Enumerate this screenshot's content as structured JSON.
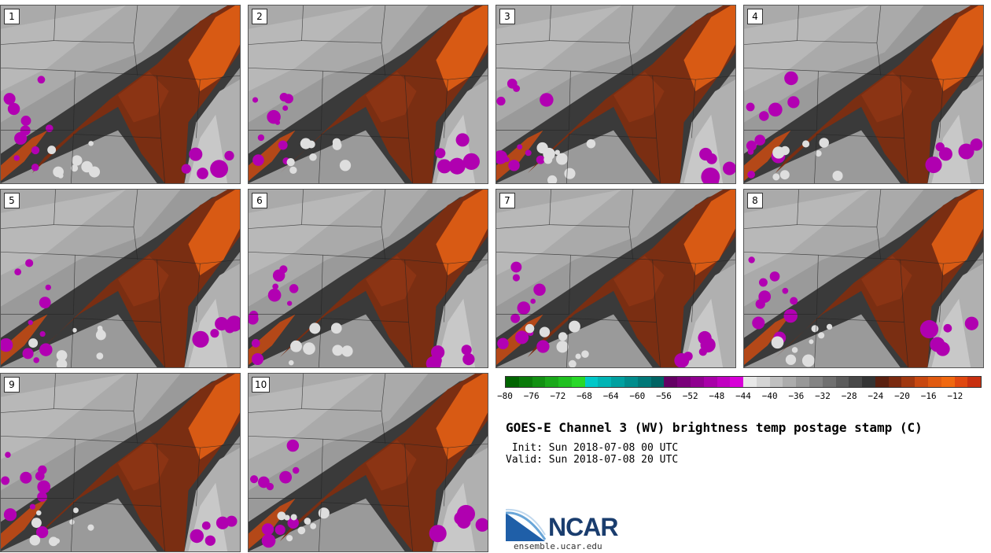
{
  "panels": [
    {
      "label": "1"
    },
    {
      "label": "2"
    },
    {
      "label": "3"
    },
    {
      "label": "4"
    },
    {
      "label": "5"
    },
    {
      "label": "6"
    },
    {
      "label": "7"
    },
    {
      "label": "8"
    },
    {
      "label": "9"
    },
    {
      "label": "10"
    }
  ],
  "colorbar": {
    "colors": [
      "#006400",
      "#0a7a0a",
      "#129012",
      "#1aa81a",
      "#20c020",
      "#28d828",
      "#00c8c8",
      "#00b4b4",
      "#00a0a0",
      "#008c8c",
      "#007878",
      "#006464",
      "#640064",
      "#7a007a",
      "#900090",
      "#a800a8",
      "#c000c0",
      "#d800d8",
      "#e8e8e8",
      "#d4d4d4",
      "#c0c0c0",
      "#acacac",
      "#989898",
      "#848484",
      "#707070",
      "#5c5c5c",
      "#484848",
      "#343434",
      "#5a2010",
      "#7a2a10",
      "#a03810",
      "#c84810",
      "#e05a10",
      "#f06810",
      "#e04810",
      "#c83010"
    ],
    "ticks": [
      "−80",
      "−76",
      "−72",
      "−68",
      "−64",
      "−60",
      "−56",
      "−52",
      "−48",
      "−44",
      "−40",
      "−36",
      "−32",
      "−28",
      "−24",
      "−20",
      "−16",
      "−12"
    ]
  },
  "title": "GOES-E Channel 3 (WV) brightness temp postage stamp (C)",
  "init": " Init: Sun 2018-07-08 00 UTC",
  "valid": "Valid: Sun 2018-07-08 20 UTC",
  "logo_text": "NCAR",
  "site": "ensemble.ucar.edu"
}
